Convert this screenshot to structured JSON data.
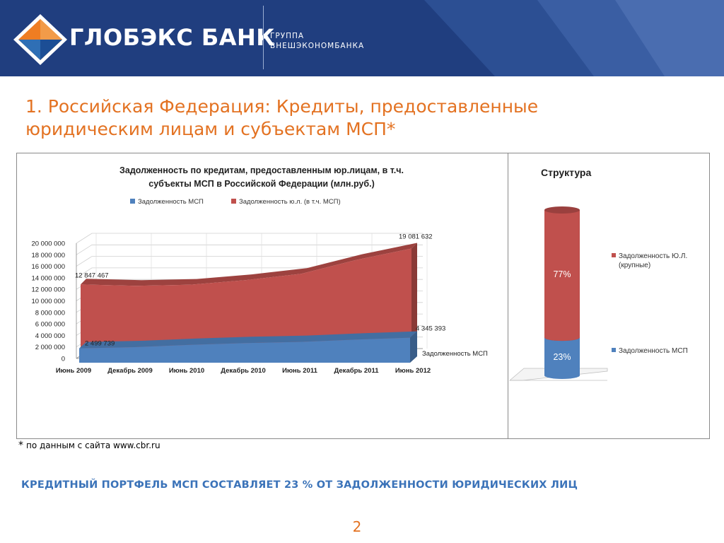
{
  "header": {
    "brand_name": "ГЛОБЭКС БАНК",
    "group_line1": "ГРУППА",
    "group_line2": "ВНЕШЭКОНОМБАНКА",
    "logo_icon": "diamond-logo-icon",
    "colors": {
      "band": "#203e7f",
      "logo_orange": "#ef7d22",
      "logo_blue": "#2f6fb5"
    }
  },
  "slide": {
    "title_line1": "1. Российская Федерация: Кредиты, предоставленные",
    "title_line2": "юридическим лицам и субъектам МСП*",
    "footnote_star": "*",
    "footnote_text": "по данным с сайта www.cbr.ru",
    "conclusion": "КРЕДИТНЫЙ ПОРТФЕЛЬ МСП СОСТАВЛЯЕТ 23 % ОТ ЗАДОЛЖЕННОСТИ ЮРИДИЧЕСКИХ ЛИЦ",
    "page_number": "2"
  },
  "chart_data": [
    {
      "type": "area",
      "title_line1": "Задолженность по кредитам, предоставленным юр.лицам, в т.ч.",
      "title_line2": "субъекты МСП в Российской Федерации (млн.руб.)",
      "legend": [
        "Задолженность МСП",
        "Задолженность ю.л. (в т.ч. МСП)"
      ],
      "legend_position": "top",
      "categories": [
        "Июнь 2009",
        "Декабрь 2009",
        "Июнь 2010",
        "Декабрь 2010",
        "Июнь 2011",
        "Декабрь 2011",
        "Июнь 2012"
      ],
      "y_ticks": [
        "20 000 000",
        "18 000 000",
        "16 000 000",
        "14 000 000",
        "12 000 000",
        "10 000 000",
        "8 000 000",
        "6 000 000",
        "4 000 000",
        "2 000 000",
        "0"
      ],
      "ylim": [
        0,
        20000000
      ],
      "grid": true,
      "series": [
        {
          "name": "Задолженность ю.л. (в т.ч. МСП)",
          "color": "#c0504d",
          "values": [
            12847467,
            12600000,
            12800000,
            13600000,
            14700000,
            17100000,
            19081632
          ]
        },
        {
          "name": "Задолженность МСП",
          "color": "#4f81bd",
          "values": [
            2499739,
            2700000,
            3100000,
            3400000,
            3600000,
            4000000,
            4345393
          ]
        }
      ],
      "data_labels": {
        "ul_first": "12 847 467",
        "ul_last": "19 081 632",
        "msp_first": "2 499 739",
        "msp_last": "4 345 393"
      },
      "series_annotation": "Задолженность МСП"
    },
    {
      "type": "bar",
      "title": "Структура",
      "stacked": true,
      "categories": [
        ""
      ],
      "series": [
        {
          "name": "Задолженность Ю.Л. (крупные)",
          "color": "#c0504d",
          "values": [
            77
          ],
          "label": "77%"
        },
        {
          "name": "Задолженность МСП",
          "color": "#4f81bd",
          "values": [
            23
          ],
          "label": "23%"
        }
      ],
      "ylim": [
        0,
        100
      ],
      "legend_position": "right"
    }
  ]
}
